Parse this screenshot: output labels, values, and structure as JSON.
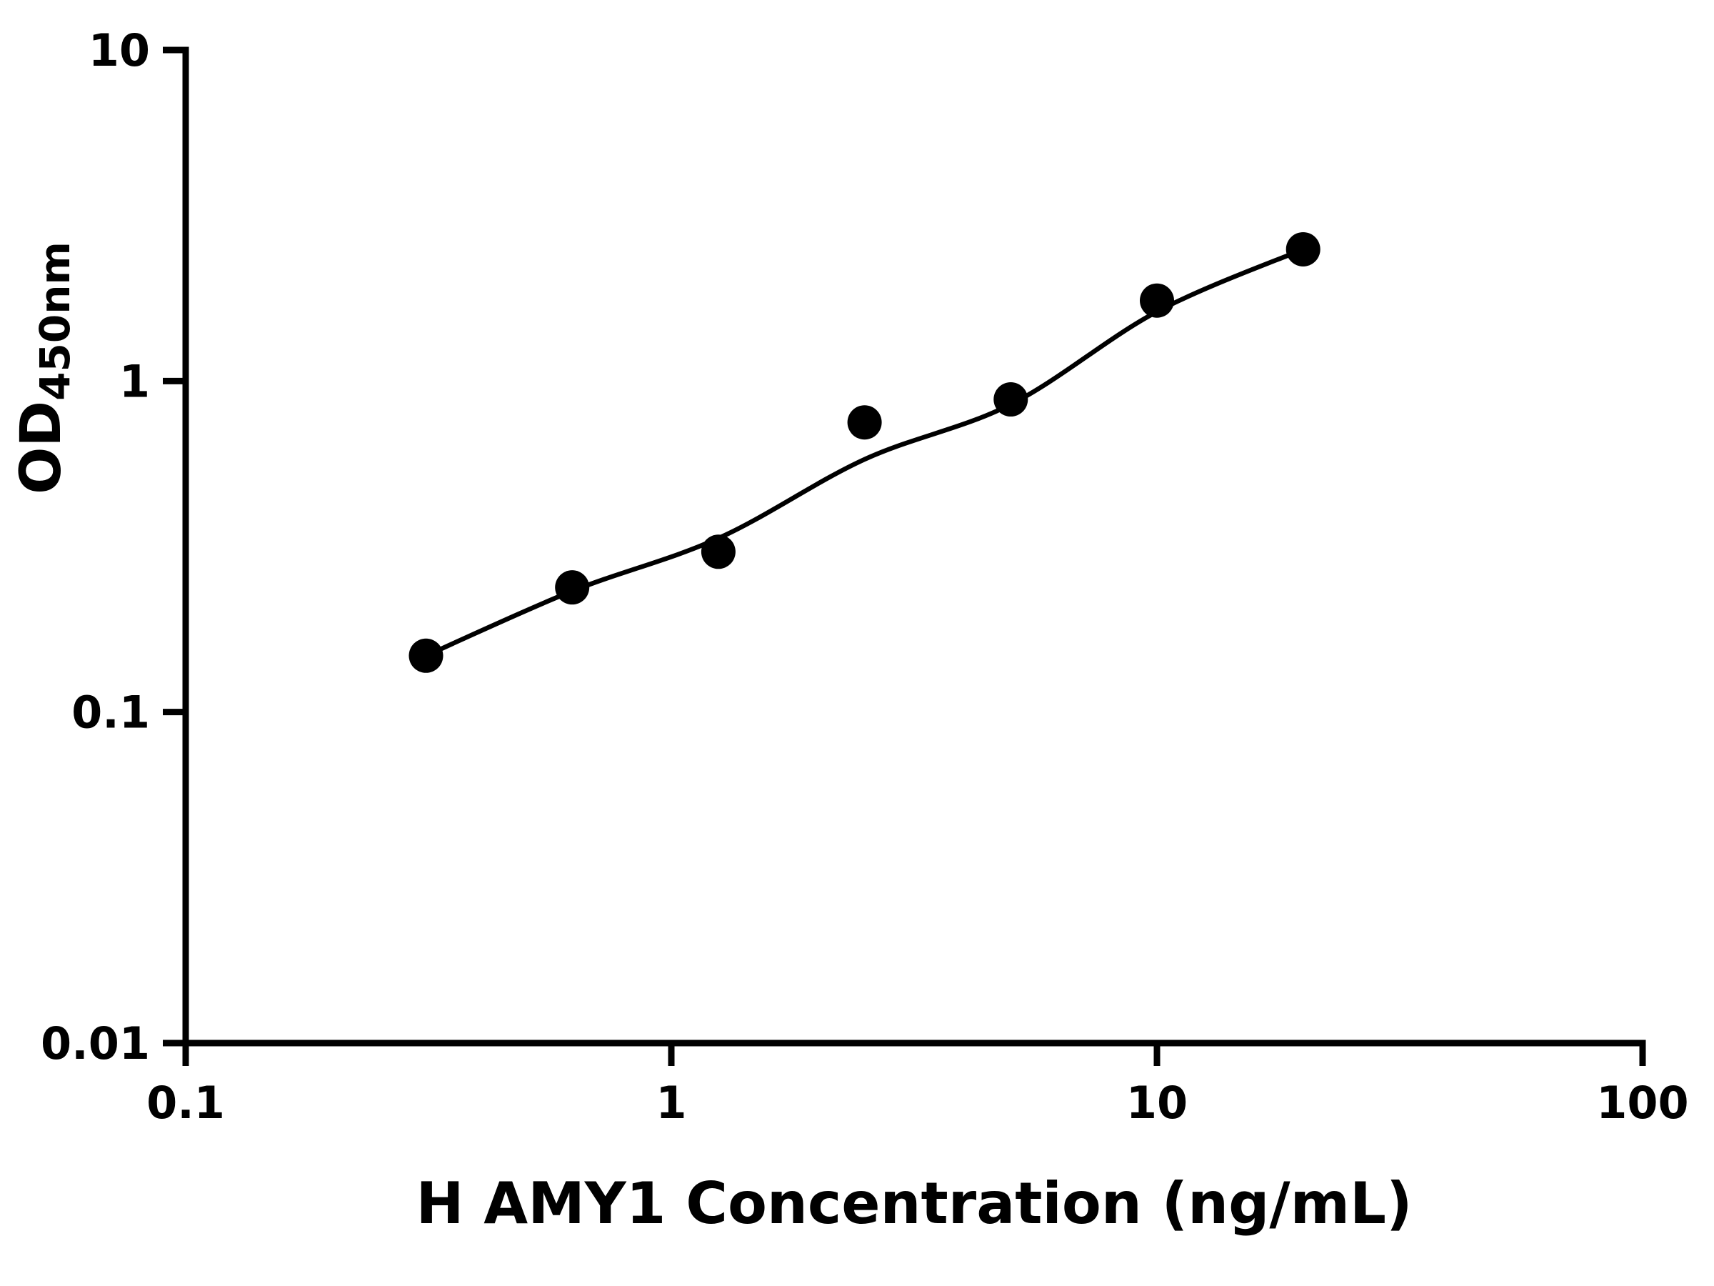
{
  "figure": {
    "background": "#ffffff"
  },
  "chart_data": {
    "type": "scatter",
    "title": "",
    "xlabel": "H AMY1 Concentration (ng/mL)",
    "ylabel": {
      "main": "OD",
      "sub": "450nm"
    },
    "xscale": "log",
    "yscale": "log",
    "xlim": [
      0.1,
      100
    ],
    "ylim": [
      0.01,
      10
    ],
    "grid": false,
    "legend": false,
    "axis_color": "#000000",
    "marker_color": "#000000",
    "curve_color": "#000000",
    "x_ticks": [
      {
        "value": 0.1,
        "label": "0.1"
      },
      {
        "value": 1,
        "label": "1"
      },
      {
        "value": 10,
        "label": "10"
      },
      {
        "value": 100,
        "label": "100"
      }
    ],
    "y_ticks": [
      {
        "value": 0.01,
        "label": "0.01"
      },
      {
        "value": 0.1,
        "label": "0.1"
      },
      {
        "value": 1,
        "label": "1"
      },
      {
        "value": 10,
        "label": "10"
      }
    ],
    "series": [
      {
        "marker": "circle",
        "points": [
          {
            "x": 0.3125,
            "y": 0.148
          },
          {
            "x": 0.625,
            "y": 0.238
          },
          {
            "x": 1.25,
            "y": 0.305
          },
          {
            "x": 2.5,
            "y": 0.75
          },
          {
            "x": 5,
            "y": 0.88
          },
          {
            "x": 10,
            "y": 1.75
          },
          {
            "x": 20,
            "y": 2.5
          }
        ]
      }
    ],
    "fit_curve": {
      "type": "4PL-fit",
      "points": [
        {
          "x": 0.3125,
          "y": 0.148
        },
        {
          "x": 0.625,
          "y": 0.232
        },
        {
          "x": 1.25,
          "y": 0.335
        },
        {
          "x": 2.5,
          "y": 0.58
        },
        {
          "x": 5,
          "y": 0.85
        },
        {
          "x": 10,
          "y": 1.62
        },
        {
          "x": 20,
          "y": 2.5
        }
      ]
    }
  }
}
